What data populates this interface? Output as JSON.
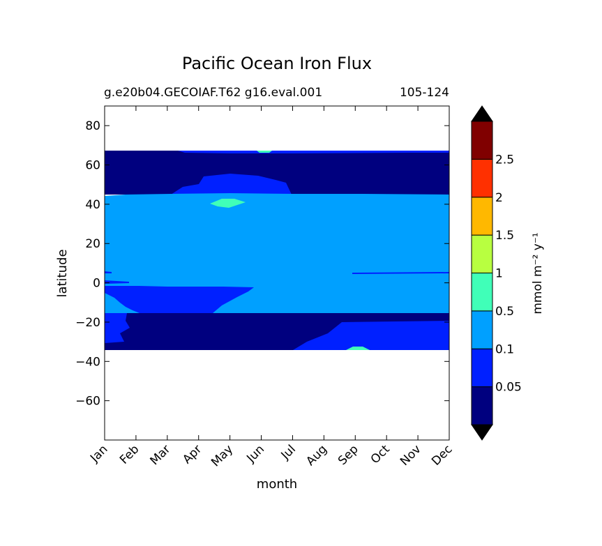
{
  "chart_data": {
    "type": "heatmap",
    "title": "Pacific Ocean Iron Flux",
    "subtitle_left": "g.e20b04.GECOIAF.T62 g16.eval.001",
    "subtitle_right": "105-124",
    "xlabel": "month",
    "ylabel": "latitude",
    "x_ticks": [
      "Jan",
      "Feb",
      "Mar",
      "Apr",
      "May",
      "Jun",
      "Jul",
      "Aug",
      "Sep",
      "Oct",
      "Nov",
      "Dec"
    ],
    "xlim": [
      0,
      11
    ],
    "ylim": [
      -80,
      90
    ],
    "y_ticks": [
      "-60",
      "-40",
      "-20",
      "0",
      "20",
      "40",
      "60",
      "80"
    ],
    "y_tick_values": [
      -60,
      -40,
      -20,
      0,
      20,
      40,
      60,
      80
    ],
    "data_lat_range": [
      -34,
      67
    ],
    "colorbar": {
      "label": "mmol m⁻² y⁻¹",
      "levels": [
        0,
        0.05,
        0.1,
        0.5,
        1,
        1.5,
        2,
        2.5,
        3
      ],
      "tick_labels": [
        "0.05",
        "0.1",
        "0.5",
        "1",
        "1.5",
        "2",
        "2.5"
      ],
      "colors": [
        "#00007f",
        "#0020ff",
        "#00a0ff",
        "#40ffb8",
        "#b8ff40",
        "#ffb800",
        "#ff3000",
        "#800000"
      ],
      "extend_colors": [
        "#000000",
        "#000000"
      ]
    },
    "regions": [
      {
        "level": "0-0.05",
        "lat_range": [
          50,
          67
        ],
        "months": "Jan-Dec"
      },
      {
        "level": "0.05-0.1",
        "lat_range": [
          45,
          53
        ],
        "months": "Mar-Jul"
      },
      {
        "level": "0.1-0.5",
        "lat_range": [
          2,
          45
        ],
        "months": "Jan-Dec"
      },
      {
        "level": "0.5-1",
        "lat_range": [
          37,
          42
        ],
        "months": "May"
      },
      {
        "level": "0.05-0.1",
        "lat_range": [
          -15,
          2
        ],
        "months": "Jan-Jun"
      },
      {
        "level": "0.1-0.5",
        "lat_range": [
          -15,
          -4
        ],
        "months": "Jul-Dec"
      },
      {
        "level": "0-0.05",
        "lat_range": [
          -34,
          -15
        ],
        "months": "Jan-Sep"
      },
      {
        "level": "0.05-0.1",
        "lat_range": [
          -34,
          -15
        ],
        "months": "Aug-Dec"
      }
    ]
  }
}
